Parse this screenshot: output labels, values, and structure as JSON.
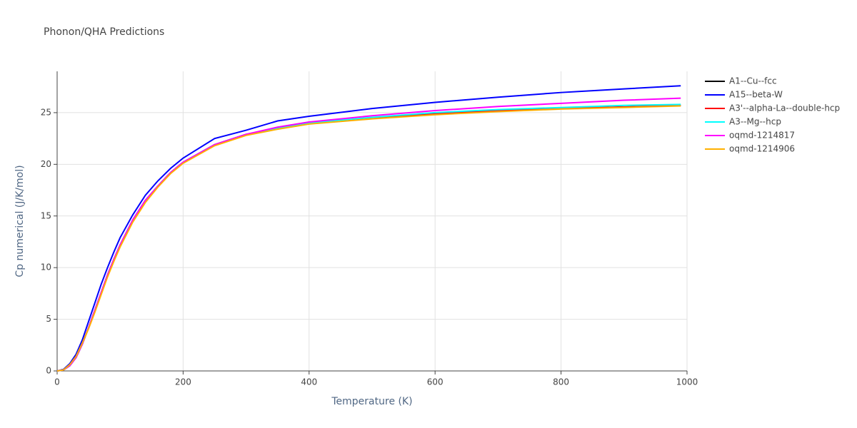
{
  "chart_data": {
    "type": "line",
    "title": "Phonon/QHA Predictions",
    "x_label": "Temperature (K)",
    "y_label": "Cp numerical (J/K/mol)",
    "x": [
      0,
      10,
      20,
      30,
      40,
      50,
      60,
      70,
      80,
      90,
      100,
      120,
      140,
      160,
      180,
      200,
      250,
      300,
      350,
      400,
      500,
      600,
      700,
      800,
      900,
      990
    ],
    "series": [
      {
        "name": "A1--Cu--fcc",
        "color": "#000000",
        "values": [
          0,
          0.1,
          0.5,
          1.3,
          2.6,
          4.2,
          5.9,
          7.6,
          9.3,
          10.8,
          12.2,
          14.6,
          16.5,
          17.9,
          19.2,
          20.2,
          21.9,
          22.9,
          23.5,
          24.0,
          24.5,
          24.9,
          25.2,
          25.4,
          25.55,
          25.7
        ]
      },
      {
        "name": "A15--beta-W",
        "color": "#0000ff",
        "values": [
          0,
          0.15,
          0.7,
          1.6,
          3.0,
          4.8,
          6.6,
          8.4,
          10.0,
          11.5,
          12.9,
          15.1,
          17.0,
          18.4,
          19.6,
          20.6,
          22.5,
          23.3,
          24.2,
          24.65,
          25.4,
          26.0,
          26.5,
          26.95,
          27.3,
          27.6
        ]
      },
      {
        "name": "A3'--alpha-La--double-hcp",
        "color": "#ff0000",
        "values": [
          0,
          0.1,
          0.5,
          1.3,
          2.6,
          4.2,
          5.9,
          7.6,
          9.3,
          10.8,
          12.2,
          14.6,
          16.5,
          17.9,
          19.2,
          20.2,
          21.9,
          22.9,
          23.5,
          24.0,
          24.5,
          24.9,
          25.2,
          25.4,
          25.55,
          25.7
        ]
      },
      {
        "name": "A3--Mg--hcp",
        "color": "#00ffff",
        "values": [
          0,
          0.1,
          0.5,
          1.3,
          2.6,
          4.2,
          5.9,
          7.6,
          9.3,
          10.8,
          12.2,
          14.6,
          16.5,
          17.9,
          19.2,
          20.2,
          21.9,
          22.9,
          23.5,
          24.0,
          24.55,
          25.0,
          25.3,
          25.5,
          25.7,
          25.8
        ]
      },
      {
        "name": "oqmd-1214817",
        "color": "#ff00ff",
        "values": [
          0,
          0.1,
          0.5,
          1.3,
          2.6,
          4.2,
          5.9,
          7.6,
          9.3,
          10.8,
          12.2,
          14.6,
          16.5,
          17.9,
          19.2,
          20.2,
          21.9,
          22.9,
          23.6,
          24.1,
          24.7,
          25.2,
          25.6,
          25.9,
          26.2,
          26.4
        ]
      },
      {
        "name": "oqmd-1214906",
        "color": "#ffb000",
        "values": [
          0,
          0.1,
          0.6,
          1.4,
          2.7,
          4.1,
          5.7,
          7.4,
          9.1,
          10.6,
          12.0,
          14.4,
          16.3,
          17.8,
          19.1,
          20.1,
          21.8,
          22.8,
          23.4,
          23.9,
          24.4,
          24.8,
          25.1,
          25.35,
          25.5,
          25.65
        ]
      }
    ],
    "xlim": [
      0,
      1000
    ],
    "xticks": [
      0,
      200,
      400,
      600,
      800,
      1000
    ],
    "ylim": [
      0,
      29
    ],
    "yticks": [
      0,
      5,
      10,
      15,
      20,
      25
    ],
    "grid": true
  }
}
